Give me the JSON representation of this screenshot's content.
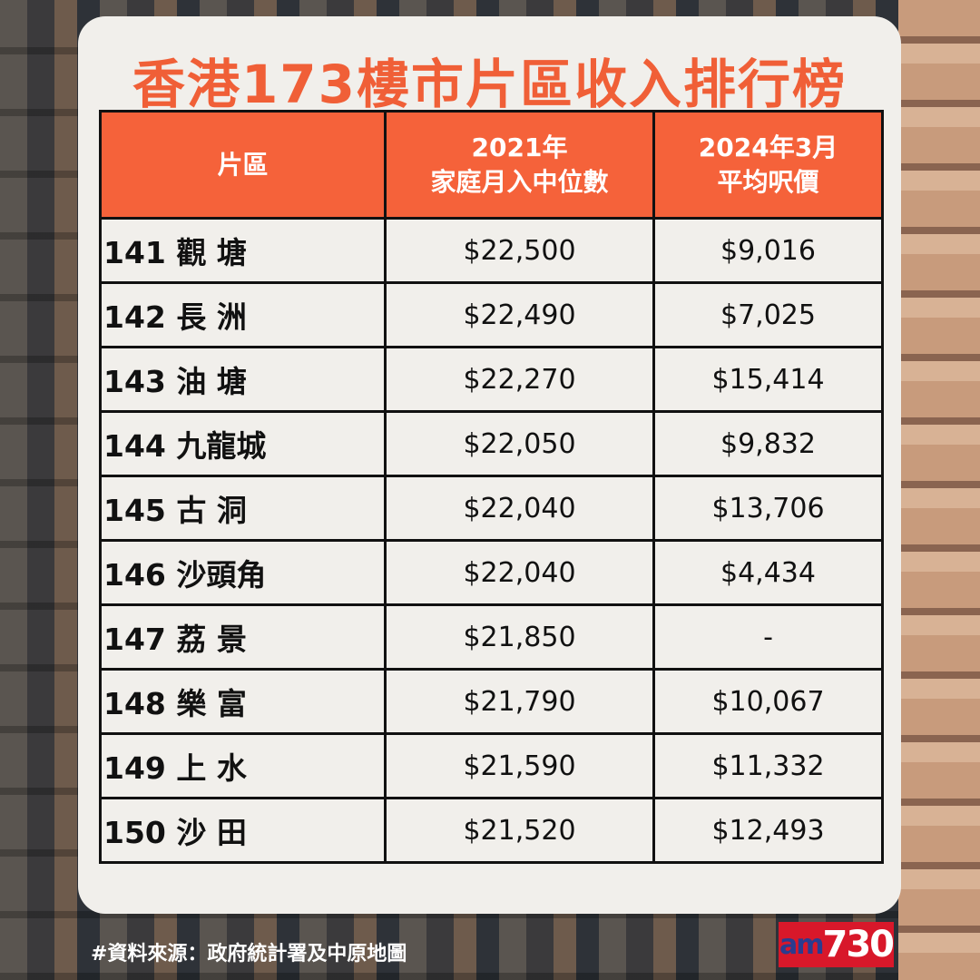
{
  "title": "香港173樓市片區收入排行榜",
  "table": {
    "headers": [
      {
        "l1": "片區",
        "l2": ""
      },
      {
        "l1": "2021年",
        "l2": "家庭月入中位數"
      },
      {
        "l1": "2024年3月",
        "l2": "平均呎價"
      }
    ],
    "rows": [
      [
        "141 觀 塘",
        "$22,500",
        "$9,016"
      ],
      [
        "142 長 洲",
        "$22,490",
        "$7,025"
      ],
      [
        "143 油 塘",
        "$22,270",
        "$15,414"
      ],
      [
        "144 九龍城",
        "$22,050",
        "$9,832"
      ],
      [
        "145 古 洞",
        "$22,040",
        "$13,706"
      ],
      [
        "146 沙頭角",
        "$22,040",
        "$4,434"
      ],
      [
        "147 荔 景",
        "$21,850",
        "-"
      ],
      [
        "148 樂 富",
        "$21,790",
        "$10,067"
      ],
      [
        "149 上 水",
        "$21,590",
        "$11,332"
      ],
      [
        "150 沙 田",
        "$21,520",
        "$12,493"
      ]
    ]
  },
  "source": "#資料來源：政府統計署及中原地圖",
  "logo": {
    "am": "am",
    "num": "730"
  },
  "colors": {
    "accent": "#f5623a",
    "logo_red": "#d8182a"
  }
}
